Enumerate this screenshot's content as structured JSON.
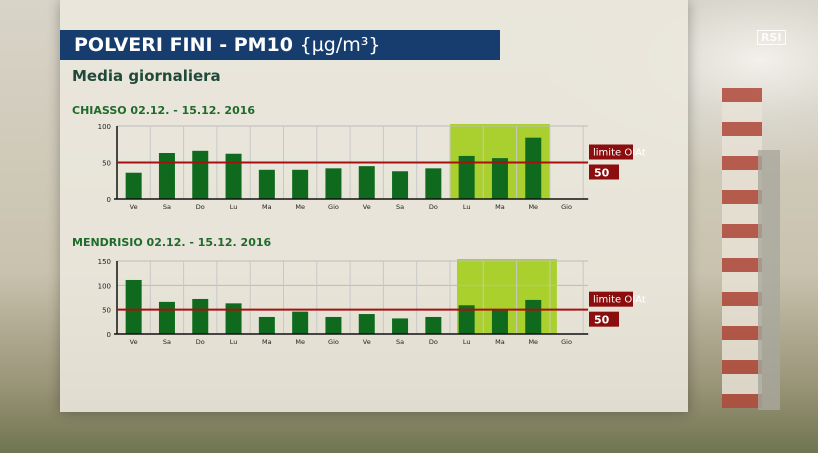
{
  "header": {
    "title": "POLVERI FINI - PM10",
    "unit": "{µg/m³}",
    "subtitle": "Media giornaliera",
    "logo": "RSI"
  },
  "chart_data": [
    {
      "type": "bar",
      "title": "CHIASSO 02.12. - 15.12. 2016",
      "categories": [
        "Ve",
        "Sa",
        "Do",
        "Lu",
        "Ma",
        "Me",
        "Gio",
        "Ve",
        "Sa",
        "Do",
        "Lu",
        "Ma",
        "Me",
        "Gio"
      ],
      "values": [
        36,
        63,
        66,
        62,
        40,
        40,
        42,
        45,
        38,
        42,
        59,
        56,
        84,
        null
      ],
      "ylim": [
        0,
        100
      ],
      "yticks": [
        0,
        50,
        100
      ],
      "highlight": [
        10,
        12
      ],
      "limit": {
        "value": 50,
        "label": "limite OIAt",
        "value_label": "50"
      }
    },
    {
      "type": "bar",
      "title": "MENDRISIO 02.12. - 15.12. 2016",
      "categories": [
        "Ve",
        "Sa",
        "Do",
        "Lu",
        "Ma",
        "Me",
        "Gio",
        "Ve",
        "Sa",
        "Do",
        "Lu",
        "Ma",
        "Me",
        "Gio"
      ],
      "values": [
        111,
        66,
        72,
        63,
        35,
        46,
        35,
        41,
        32,
        35,
        59,
        51,
        70,
        null
      ],
      "ylim": [
        0,
        150
      ],
      "yticks": [
        0,
        50,
        100,
        150
      ],
      "highlight": [
        10,
        12
      ],
      "limit": {
        "value": 50,
        "label": "limite OIAt",
        "value_label": "50"
      }
    }
  ],
  "colors": {
    "bar": "#0f6a1e",
    "highlight": "#9fcc10",
    "limit": "#8b0d0d",
    "title_bg": "#173d6e"
  }
}
